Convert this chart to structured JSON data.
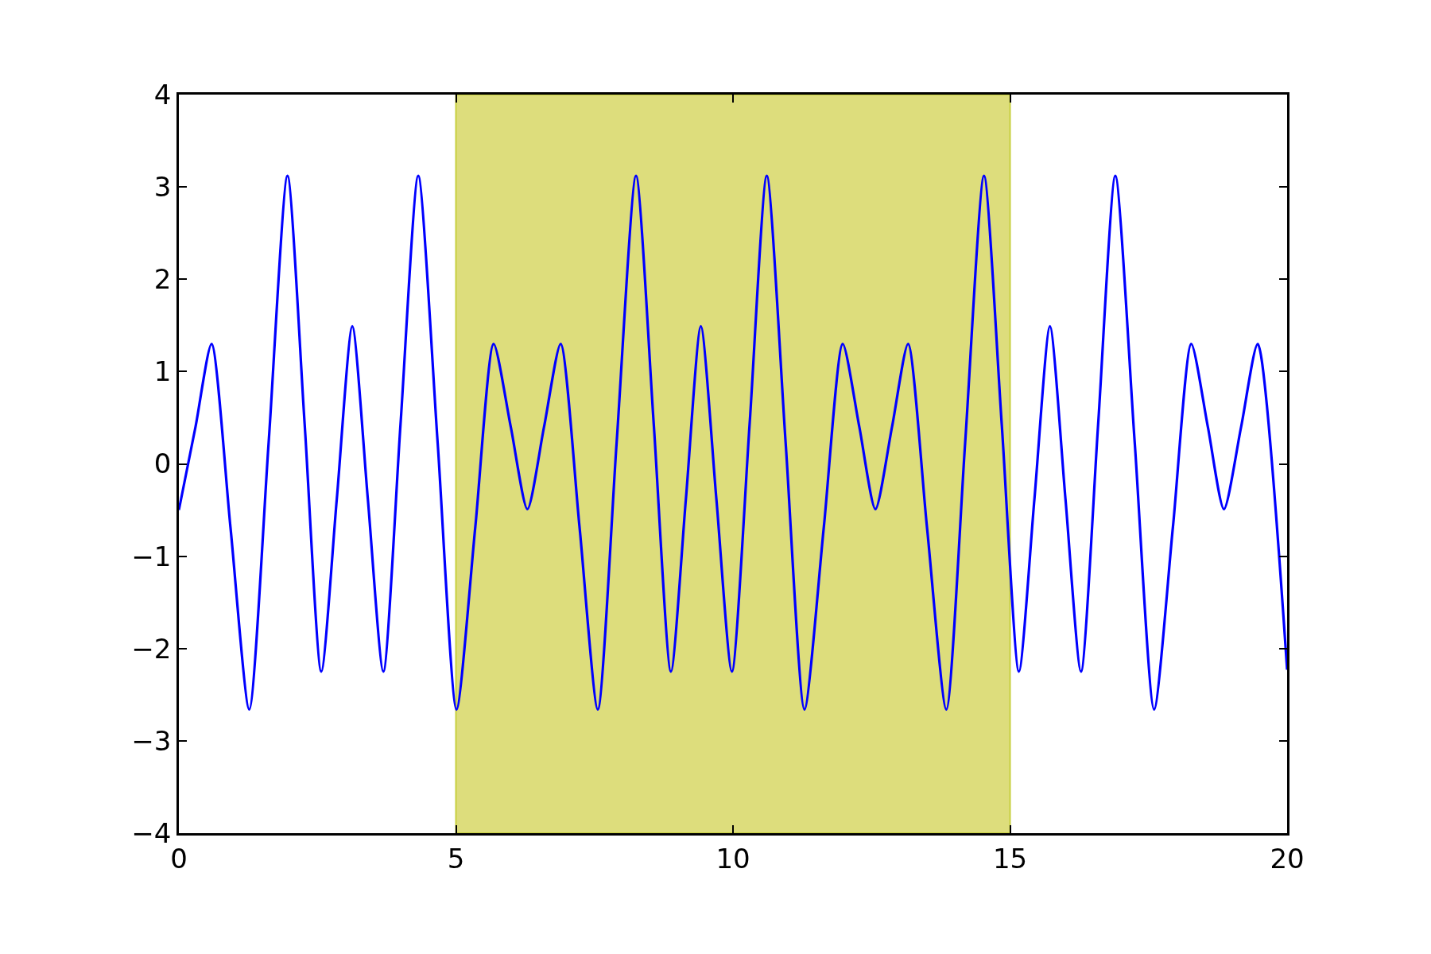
{
  "chart_data": {
    "type": "line",
    "x": [
      0,
      0.3,
      0.59,
      0.93,
      1.27,
      1.62,
      1.96,
      2.27,
      2.57,
      2.85,
      3.13,
      3.41,
      3.69,
      4.0,
      4.32,
      4.67,
      5.01,
      5.35,
      5.68,
      5.99,
      6.29,
      6.59,
      6.89,
      7.23,
      7.56,
      7.9,
      8.25,
      8.57,
      8.88,
      9.15,
      9.42,
      9.7,
      9.98,
      10.3,
      10.61,
      10.95,
      11.29,
      11.64,
      11.98,
      12.28,
      12.57,
      12.87,
      13.16,
      13.5,
      13.85,
      14.19,
      14.53,
      14.85,
      15.16,
      15.44,
      15.72,
      16.0,
      16.28,
      16.59,
      16.9,
      17.25,
      17.6,
      17.94,
      18.27,
      18.57,
      18.86,
      19.17,
      19.47,
      20
    ],
    "series": [
      {
        "color": "#0000ff",
        "values": [
          -0.5,
          0.4,
          1.3,
          -0.68,
          -2.66,
          0.23,
          3.12,
          0.43,
          -2.25,
          -0.38,
          1.49,
          -0.38,
          -2.25,
          0.43,
          3.12,
          0.23,
          -2.66,
          -0.68,
          1.3,
          0.4,
          -0.49,
          0.4,
          1.3,
          -0.68,
          -2.66,
          0.23,
          3.12,
          0.43,
          -2.25,
          -0.38,
          1.49,
          -0.38,
          -2.25,
          0.43,
          3.12,
          0.23,
          -2.66,
          -0.68,
          1.3,
          0.4,
          -0.49,
          0.4,
          1.3,
          -0.68,
          -2.66,
          0.23,
          3.12,
          0.43,
          -2.25,
          -0.38,
          1.49,
          -0.38,
          -2.25,
          0.43,
          3.12,
          0.23,
          -2.66,
          -0.68,
          1.3,
          0.4,
          -0.49,
          0.4,
          1.3,
          -2.23
        ]
      }
    ],
    "bands": [
      {
        "axis": "x",
        "from": 5,
        "to": 15,
        "color": "#dddd7c"
      }
    ],
    "xlim": [
      0,
      20
    ],
    "ylim": [
      -4,
      4
    ],
    "xticks": [
      0,
      5,
      10,
      15,
      20
    ],
    "yticks": [
      {
        "value": -4,
        "label": "−4"
      },
      {
        "value": -3,
        "label": "−3"
      },
      {
        "value": -2,
        "label": "−2"
      },
      {
        "value": -1,
        "label": "−1"
      },
      0,
      1,
      2,
      3,
      4
    ],
    "grid": false,
    "line_style": "solid",
    "marker": "none"
  }
}
